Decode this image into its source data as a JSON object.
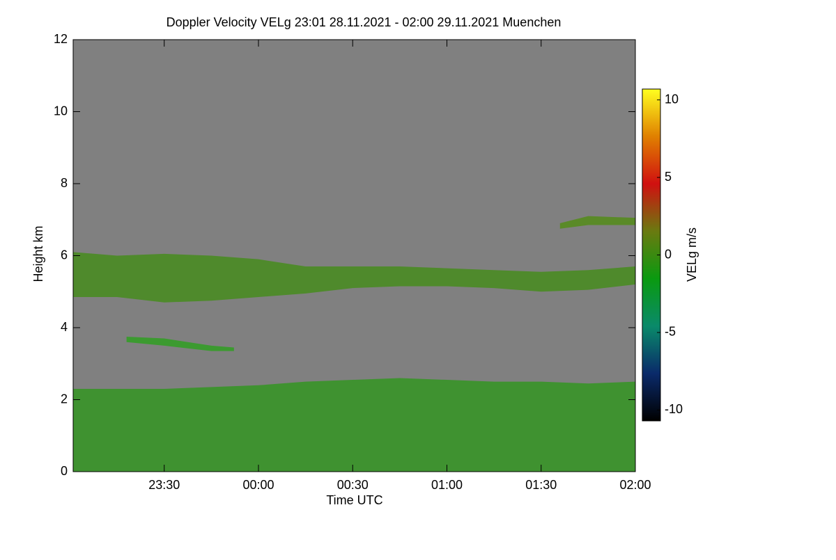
{
  "chart_data": {
    "type": "band",
    "title": "Doppler Velocity VELg   23:01 28.11.2021 - 02:00 29.11.2021 Muenchen",
    "x_label": "Time UTC",
    "y_label": "Height km",
    "background": "#808080",
    "xlim": [
      23.0167,
      26.0
    ],
    "xticks": [
      {
        "value": 23.5,
        "label": "23:30"
      },
      {
        "value": 24.0,
        "label": "00:00"
      },
      {
        "value": 24.5,
        "label": "00:30"
      },
      {
        "value": 25.0,
        "label": "01:00"
      },
      {
        "value": 25.5,
        "label": "01:30"
      },
      {
        "value": 26.0,
        "label": "02:00"
      }
    ],
    "ylim": [
      0,
      12
    ],
    "yticks": [
      0,
      2,
      4,
      6,
      8,
      10,
      12
    ],
    "colorbar": {
      "label": "VELg m/s",
      "clim": [
        -10.7,
        10.7
      ],
      "ticks": [
        -10,
        -5,
        0,
        5,
        10
      ],
      "colormap": [
        "#000000",
        "#0a2a6a",
        "#0a8a6a",
        "#0a9a10",
        "#6a7a10",
        "#d01010",
        "#e08000",
        "#ffff20"
      ]
    },
    "series": [
      {
        "color": "#3f9230",
        "x": [
          23.0167,
          23.25,
          23.5,
          23.75,
          24.0,
          24.25,
          24.5,
          24.75,
          25.0,
          25.25,
          25.5,
          25.75,
          26.0
        ],
        "bottom": [
          0,
          0,
          0,
          0,
          0,
          0,
          0,
          0,
          0,
          0,
          0,
          0,
          0
        ],
        "top": [
          2.3,
          2.3,
          2.3,
          2.35,
          2.4,
          2.5,
          2.55,
          2.6,
          2.55,
          2.5,
          2.5,
          2.45,
          2.5
        ]
      },
      {
        "color": "#4f8a2c",
        "x": [
          23.0167,
          23.25,
          23.5,
          23.75,
          24.0,
          24.25,
          24.5,
          24.75,
          25.0,
          25.25,
          25.5,
          25.75,
          26.0
        ],
        "bottom": [
          4.85,
          4.85,
          4.7,
          4.75,
          4.85,
          4.95,
          5.1,
          5.15,
          5.15,
          5.1,
          5.0,
          5.05,
          5.2
        ],
        "top": [
          6.1,
          6.0,
          6.05,
          6.0,
          5.9,
          5.7,
          5.7,
          5.7,
          5.65,
          5.6,
          5.55,
          5.6,
          5.7
        ]
      },
      {
        "color": "#3c9a30",
        "x": [
          23.3,
          23.5,
          23.75,
          23.87
        ],
        "bottom": [
          3.6,
          3.5,
          3.35,
          3.35
        ],
        "top": [
          3.75,
          3.7,
          3.5,
          3.45
        ]
      },
      {
        "color": "#5a8a28",
        "x": [
          25.6,
          25.75,
          26.0
        ],
        "bottom": [
          6.75,
          6.85,
          6.85
        ],
        "top": [
          6.9,
          7.1,
          7.05
        ]
      }
    ]
  }
}
